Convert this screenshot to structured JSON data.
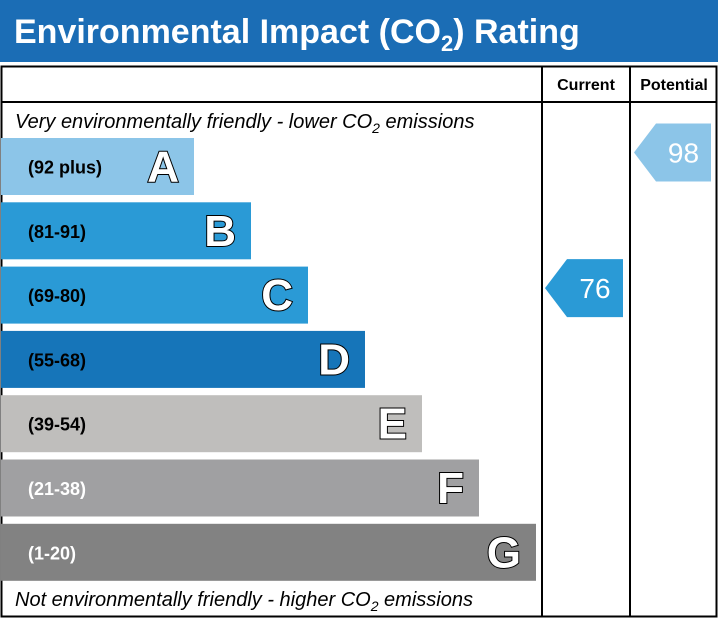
{
  "title": "Environmental Impact (CO",
  "title_sub": "2",
  "title_end": ") Rating",
  "header_color": "#1b6db5",
  "columns": {
    "current": "Current",
    "potential": "Potential"
  },
  "top_note": {
    "pre": "Very environmentally friendly - lower CO",
    "sub": "2",
    "post": " emissions"
  },
  "bottom_note": {
    "pre": "Not environmentally friendly - higher CO",
    "sub": "2",
    "post": " emissions"
  },
  "chart_data": {
    "type": "bar",
    "bands": [
      {
        "letter": "A",
        "range": "(92 plus)",
        "color": "#8cc5e8",
        "range_text_color": "#000000"
      },
      {
        "letter": "B",
        "range": "(81-91)",
        "color": "#2a9ad6",
        "range_text_color": "#000000"
      },
      {
        "letter": "C",
        "range": "(69-80)",
        "color": "#2a9ad6",
        "range_text_color": "#000000"
      },
      {
        "letter": "D",
        "range": "(55-68)",
        "color": "#1675b9",
        "range_text_color": "#000000"
      },
      {
        "letter": "E",
        "range": "(39-54)",
        "color": "#bfbebc",
        "range_text_color": "#000000"
      },
      {
        "letter": "F",
        "range": "(21-38)",
        "color": "#a0a0a2",
        "range_text_color": "#ffffff"
      },
      {
        "letter": "G",
        "range": "(1-20)",
        "color": "#828282",
        "range_text_color": "#ffffff"
      }
    ],
    "current": {
      "value": 76,
      "band": "C",
      "color": "#2a9ad6"
    },
    "potential": {
      "value": 98,
      "band": "A",
      "color": "#8cc5e8"
    }
  }
}
